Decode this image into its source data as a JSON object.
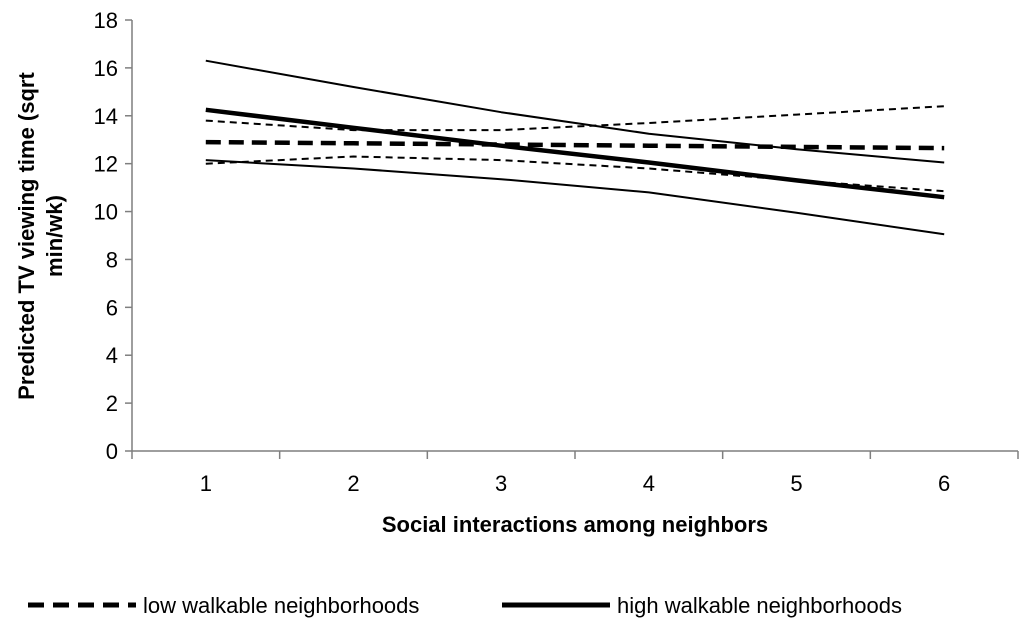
{
  "chart_data": {
    "type": "line",
    "xlabel": "Social interactions among neighbors",
    "ylabel_lines": [
      "Predicted  TV viewing time (sqrt",
      "min/wk)"
    ],
    "x": [
      1,
      2,
      3,
      4,
      5,
      6
    ],
    "xlim": [
      0.5,
      6.5
    ],
    "ylim": [
      0,
      18
    ],
    "yticks": [
      0,
      2,
      4,
      6,
      8,
      10,
      12,
      14,
      16,
      18
    ],
    "grid": false,
    "legend_position": "bottom",
    "series": [
      {
        "key": "low-walkable",
        "name": "low walkable neighborhoods",
        "style": "dashed",
        "role": "estimate",
        "values": [
          12.9,
          12.85,
          12.8,
          12.75,
          12.7,
          12.65
        ]
      },
      {
        "key": "low-walkable-ci-upper",
        "style": "dashed",
        "role": "ci",
        "values": [
          13.8,
          13.4,
          13.4,
          13.7,
          14.05,
          14.4
        ]
      },
      {
        "key": "low-walkable-ci-lower",
        "style": "dashed",
        "role": "ci",
        "values": [
          12.0,
          12.3,
          12.15,
          11.8,
          11.3,
          10.85
        ]
      },
      {
        "key": "high-walkable",
        "name": "high walkable neighborhoods",
        "style": "solid",
        "role": "estimate",
        "values": [
          14.25,
          13.5,
          12.75,
          12.05,
          11.3,
          10.6
        ]
      },
      {
        "key": "high-walkable-ci-upper",
        "style": "solid",
        "role": "ci",
        "values": [
          16.3,
          15.2,
          14.15,
          13.25,
          12.6,
          12.05
        ]
      },
      {
        "key": "high-walkable-ci-lower",
        "style": "solid",
        "role": "ci",
        "values": [
          12.15,
          11.8,
          11.35,
          10.8,
          9.95,
          9.05
        ]
      }
    ]
  }
}
